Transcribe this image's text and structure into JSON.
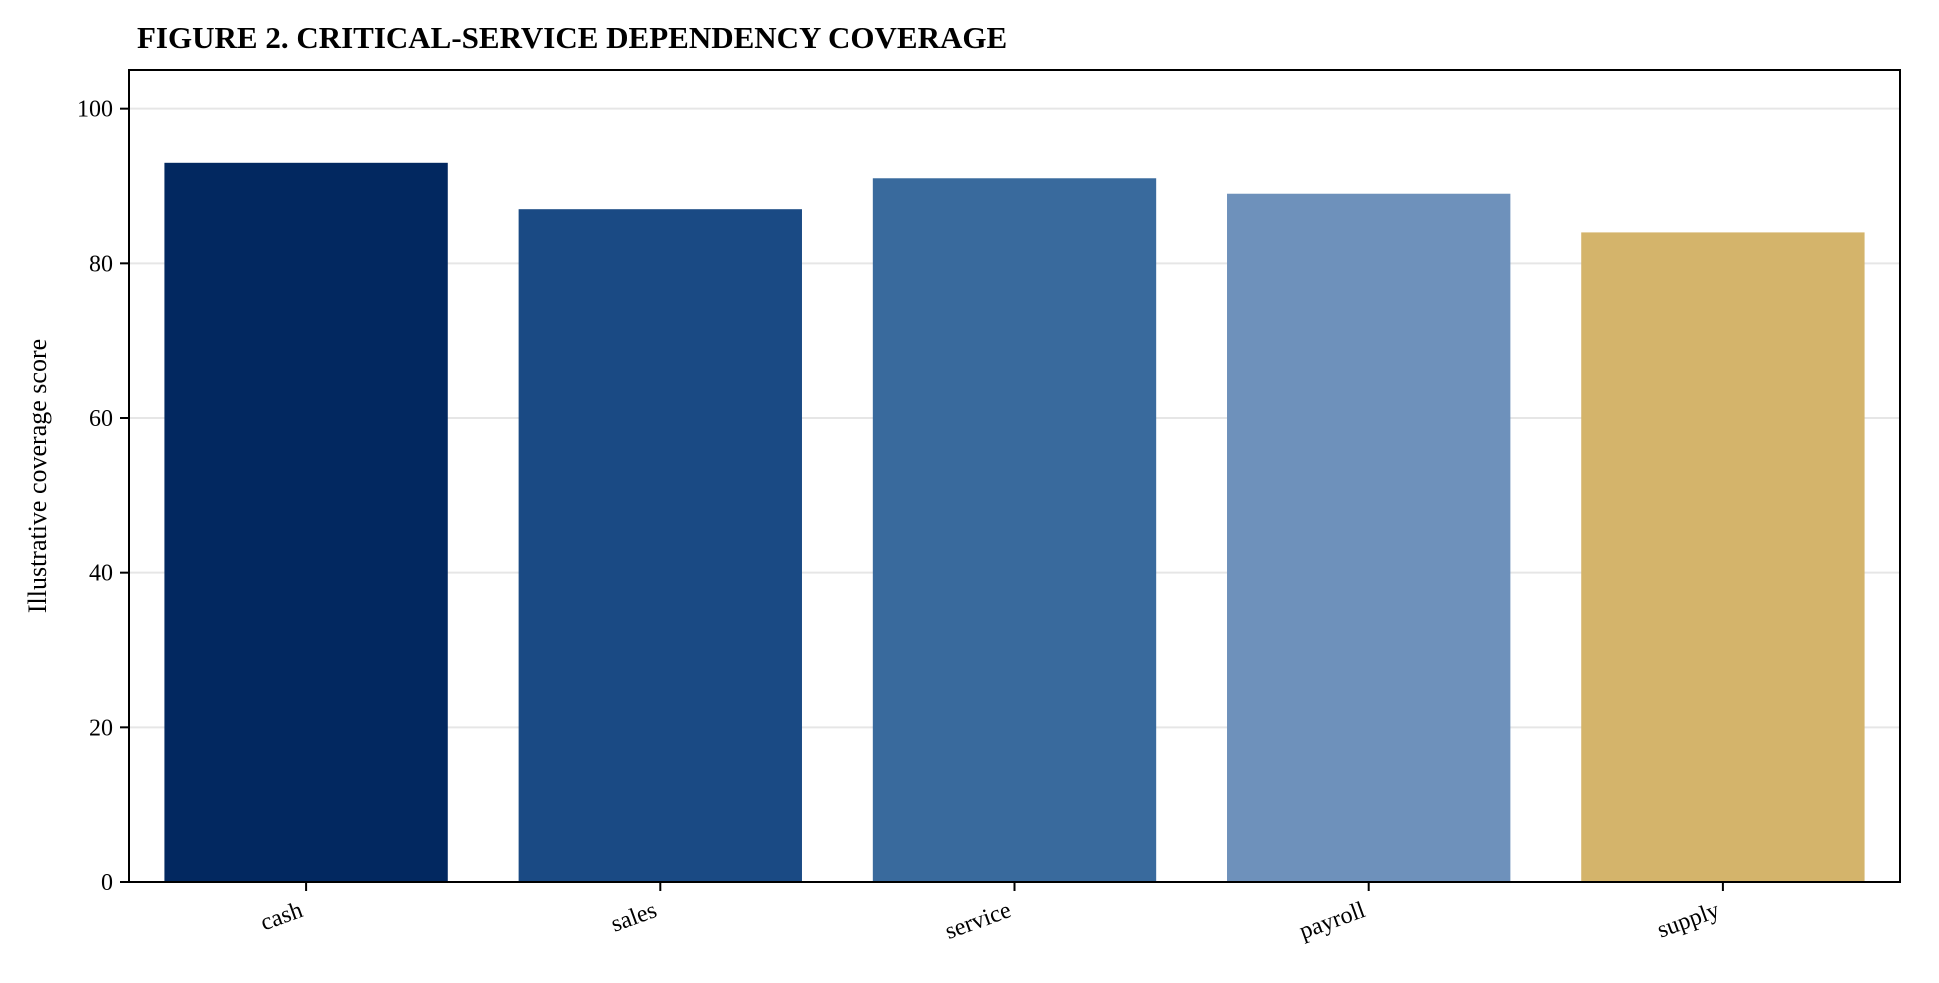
{
  "chart_data": {
    "type": "bar",
    "title": "FIGURE 2. CRITICAL-SERVICE DEPENDENCY COVERAGE",
    "xlabel": "",
    "ylabel": "Illustrative coverage score",
    "categories": [
      "cash",
      "sales",
      "service",
      "payroll",
      "supply"
    ],
    "values": [
      93,
      87,
      91,
      89,
      84
    ],
    "colors": [
      "#022860",
      "#1a4a84",
      "#396a9d",
      "#6e91bb",
      "#d4b46b"
    ],
    "ylim": [
      0,
      105
    ],
    "yticks": [
      0,
      20,
      40,
      60,
      80,
      100
    ],
    "grid": "horizontal",
    "legend": "none"
  }
}
